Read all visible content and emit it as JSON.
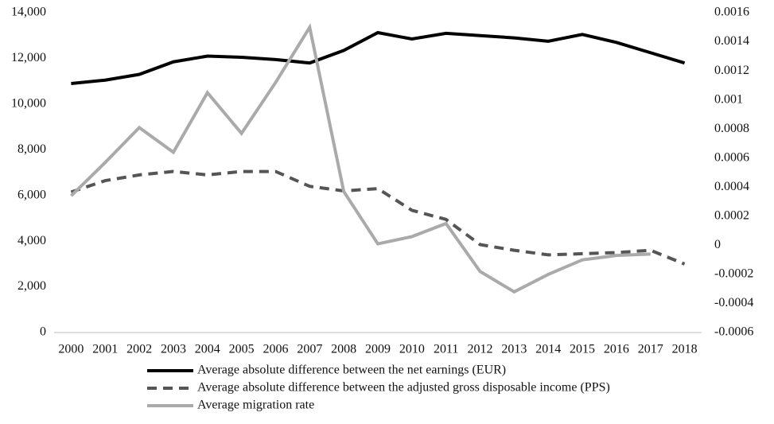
{
  "chart_data": {
    "type": "line",
    "categories": [
      "2000",
      "2001",
      "2002",
      "2003",
      "2004",
      "2005",
      "2006",
      "2007",
      "2008",
      "2009",
      "2010",
      "2011",
      "2012",
      "2013",
      "2014",
      "2015",
      "2016",
      "2017",
      "2018"
    ],
    "ylim": [
      0,
      14000
    ],
    "yticks": [
      0,
      {
        "value": 2000,
        "label": "2,000"
      },
      {
        "value": 4000,
        "label": "4,000"
      },
      {
        "value": 6000,
        "label": "6,000"
      },
      {
        "value": 8000,
        "label": "8,000"
      },
      {
        "value": 10000,
        "label": "10,000"
      },
      {
        "value": 12000,
        "label": "12,000"
      },
      {
        "value": 14000,
        "label": "14,000"
      }
    ],
    "y2lim": [
      -0.0006,
      0.0016
    ],
    "y2ticks": [
      -0.0006,
      -0.0004,
      -0.0002,
      0,
      0.0002,
      0.0004,
      0.0006,
      0.0008,
      0.001,
      0.0012,
      0.0014,
      0.0016
    ],
    "legend": "bottom",
    "series": [
      {
        "name": "Average absolute difference between the net earnings (EUR)",
        "color": "#000000",
        "dashed": false,
        "values": [
          10900,
          11050,
          11300,
          11850,
          12100,
          12050,
          11950,
          11800,
          12350,
          13130,
          12850,
          13100,
          13000,
          12900,
          12750,
          13050,
          12700,
          12250,
          11800
        ]
      },
      {
        "name": "Average absolute difference between the adjusted gross disposable income (PPS)",
        "color": "#555555",
        "dashed": true,
        "values": [
          6150,
          6650,
          6900,
          7050,
          6900,
          7050,
          7050,
          6400,
          6200,
          6300,
          5350,
          4950,
          3850,
          3600,
          3400,
          3450,
          3500,
          3600,
          3000
        ]
      },
      {
        "name": "Average migration rate",
        "color": "#aaaaaa",
        "dashed": false,
        "axis": "y2",
        "values": [
          0.00034,
          0.00057,
          0.00081,
          0.00064,
          0.00105,
          0.00077,
          0.00112,
          0.0015,
          0.00037,
          1e-05,
          6e-05,
          0.00015,
          -0.00018,
          -0.00032,
          -0.0002,
          -0.0001,
          -7e-05,
          -6e-05,
          null
        ]
      }
    ]
  }
}
